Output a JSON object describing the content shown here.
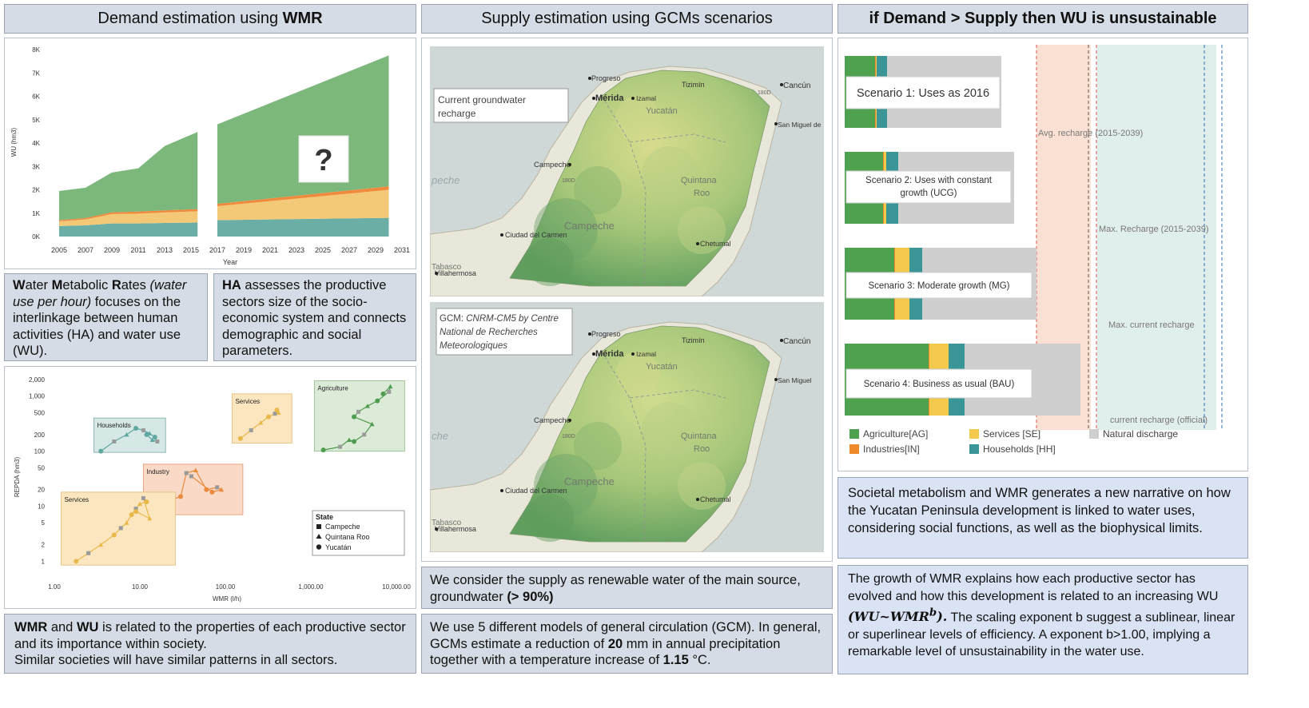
{
  "headers": {
    "demand": {
      "pre": "Demand estimation using ",
      "bold": "WMR"
    },
    "supply": "Supply estimation using GCMs scenarios",
    "unsustainable": "if Demand > Supply then WU is unsustainable"
  },
  "area_chart": {
    "chart_data": {
      "type": "area",
      "x": [
        2005,
        2007,
        2009,
        2011,
        2013,
        2015,
        2017,
        2019,
        2021,
        2023,
        2025,
        2027,
        2029,
        2031
      ],
      "x_tick_labels": [
        "2005",
        "2007",
        "2009",
        "2011",
        "2013",
        "2015",
        "2017",
        "2019",
        "2021",
        "2023",
        "2025",
        "2027",
        "2029",
        "2031"
      ],
      "y_tick_labels": [
        "0K",
        "1K",
        "2K",
        "3K",
        "4K",
        "5K",
        "6K",
        "7K",
        "8K"
      ],
      "xlabel": "Year",
      "ylabel": "WU (hm3)",
      "ylim": [
        0,
        8000
      ],
      "series": [
        {
          "color": "#6aaea6",
          "x": [
            2005,
            2007,
            2009,
            2011,
            2013,
            2015.5
          ],
          "values": [
            450,
            480,
            560,
            560,
            580,
            600
          ]
        },
        {
          "color": "#f3c977",
          "x": [
            2005,
            2007,
            2009,
            2011,
            2013,
            2015.5
          ],
          "values": [
            200,
            250,
            400,
            420,
            450,
            480
          ]
        },
        {
          "color": "#f08a3c",
          "x": [
            2005,
            2007,
            2009,
            2011,
            2013,
            2015.5
          ],
          "values": [
            50,
            60,
            80,
            90,
            90,
            95
          ]
        },
        {
          "color": "#7cb87c",
          "x": [
            2005,
            2007,
            2009,
            2011,
            2013,
            2015.5
          ],
          "values": [
            1250,
            1300,
            1700,
            1850,
            2750,
            3300
          ]
        },
        {
          "color": "#6aaea6",
          "x": [
            2017,
            2030
          ],
          "values": [
            700,
            800
          ]
        },
        {
          "color": "#f3c977",
          "x": [
            2017,
            2030
          ],
          "values": [
            600,
            1200
          ]
        },
        {
          "color": "#f08a3c",
          "x": [
            2017,
            2030
          ],
          "values": [
            100,
            150
          ]
        },
        {
          "color": "#7cb87c",
          "x": [
            2017,
            2030
          ],
          "values": [
            3400,
            5600
          ]
        }
      ],
      "question_mark": "?"
    }
  },
  "wmr_text": {
    "parts": [
      {
        "t": "W",
        "b": true
      },
      {
        "t": "ater "
      },
      {
        "t": "M",
        "b": true
      },
      {
        "t": "etabolic "
      },
      {
        "t": "R",
        "b": true
      },
      {
        "t": "ates "
      },
      {
        "t": "(water use per hour)",
        "i": true
      },
      {
        "t": " focuses on the interlinkage between human activities (HA) and water use (WU)."
      }
    ]
  },
  "ha_text": {
    "bold": "HA",
    "rest": " assesses the productive sectors size of the socio-economic system and connects demographic and social parameters."
  },
  "scatter": {
    "chart_data": {
      "type": "scatter",
      "xlabel": "WMR (l/h)",
      "ylabel": "REPDA (hm3)",
      "x_ticks": [
        {
          "v": 1,
          "label": "1.00"
        },
        {
          "v": 10,
          "label": "10.00"
        },
        {
          "v": 100,
          "label": "100.00"
        },
        {
          "v": 1000,
          "label": "1,000.00"
        },
        {
          "v": 10000,
          "label": "10,000.00"
        }
      ],
      "y_ticks": [
        {
          "v": 1,
          "label": "1"
        },
        {
          "v": 2,
          "label": "2"
        },
        {
          "v": 5,
          "label": "5"
        },
        {
          "v": 10,
          "label": "10"
        },
        {
          "v": 20,
          "label": "20"
        },
        {
          "v": 50,
          "label": "50"
        },
        {
          "v": 100,
          "label": "100"
        },
        {
          "v": 200,
          "label": "200"
        },
        {
          "v": 500,
          "label": "500"
        },
        {
          "v": 1000,
          "label": "1,000"
        },
        {
          "v": 2000,
          "label": "2,000"
        }
      ],
      "xlim": [
        1,
        10000
      ],
      "ylim": [
        0.8,
        2000
      ],
      "groups": [
        {
          "label": "Households",
          "fill": "#d5e8e6",
          "stroke": "#8fb8b4",
          "box": {
            "x": [
              2.9,
              20
            ],
            "y": [
              95,
              400
            ]
          },
          "color": "#5fa8a0",
          "points": [
            [
              3.5,
              100
            ],
            [
              5,
              150
            ],
            [
              7,
              200
            ],
            [
              9,
              260
            ],
            [
              11,
              240
            ],
            [
              13,
              210
            ],
            [
              15,
              180
            ],
            [
              16,
              150
            ],
            [
              14,
              160
            ],
            [
              12,
              200
            ]
          ]
        },
        {
          "label": "Services",
          "fill": "#fbe6bf",
          "stroke": "#e7c488",
          "box": {
            "x": [
              120,
              600
            ],
            "y": [
              140,
              1100
            ]
          },
          "color": "#e8b84a",
          "points": [
            [
              150,
              170
            ],
            [
              200,
              240
            ],
            [
              260,
              330
            ],
            [
              320,
              420
            ],
            [
              380,
              480
            ],
            [
              420,
              500
            ],
            [
              400,
              560
            ]
          ]
        },
        {
          "label": "Agriculture",
          "fill": "#dcebd8",
          "stroke": "#9fc597",
          "box": {
            "x": [
              1100,
              12500
            ],
            "y": [
              100,
              1900
            ]
          },
          "color": "#4f9b4f",
          "points": [
            [
              1400,
              105
            ],
            [
              2200,
              120
            ],
            [
              2800,
              160
            ],
            [
              3200,
              150
            ],
            [
              4200,
              200
            ],
            [
              5200,
              310
            ],
            [
              3200,
              420
            ],
            [
              3600,
              520
            ],
            [
              4600,
              660
            ],
            [
              6000,
              820
            ],
            [
              8200,
              1200
            ],
            [
              8500,
              1500
            ],
            [
              7000,
              1100
            ]
          ]
        },
        {
          "label": "Industry",
          "fill": "#fad9c7",
          "stroke": "#eaa782",
          "box": {
            "x": [
              11,
              160
            ],
            "y": [
              7,
              58
            ]
          },
          "color": "#ea8a3c",
          "points": [
            [
              14,
              9
            ],
            [
              17,
              10
            ],
            [
              20,
              12
            ],
            [
              30,
              15
            ],
            [
              35,
              40
            ],
            [
              45,
              45
            ],
            [
              60,
              20
            ],
            [
              80,
              22
            ],
            [
              90,
              20
            ],
            [
              70,
              18
            ],
            [
              40,
              35
            ]
          ]
        },
        {
          "label": "Services",
          "fill": "#fbe6bf",
          "stroke": "#e7c488",
          "box": {
            "x": [
              1.2,
              26
            ],
            "y": [
              0.85,
              18
            ]
          },
          "color": "#e8b84a",
          "points": [
            [
              1.8,
              1
            ],
            [
              2.5,
              1.4
            ],
            [
              3.5,
              2
            ],
            [
              5,
              3
            ],
            [
              6,
              4
            ],
            [
              7,
              5
            ],
            [
              8,
              7
            ],
            [
              9,
              9
            ],
            [
              10,
              11
            ],
            [
              12,
              12
            ],
            [
              11,
              14
            ],
            [
              13,
              6
            ],
            [
              9,
              8
            ]
          ]
        }
      ],
      "legend": {
        "title": "State",
        "items": [
          {
            "shape": "square",
            "label": "Campeche"
          },
          {
            "shape": "triangle",
            "label": "Quintana Roo"
          },
          {
            "shape": "circle",
            "label": "Yucatán"
          }
        ]
      }
    }
  },
  "wmr_wu_text": {
    "b1": "WMR",
    "m1": " and ",
    "b2": "WU",
    "m2": " is related to the properties of each productive sector and its importance within society.",
    "line2": "Similar societies will have similar patterns in all sectors."
  },
  "maps": {
    "current": {
      "box_label": "Current groundwater recharge",
      "places": {
        "progreso": "Progreso",
        "merida": "Mérida",
        "izamal": "Izamal",
        "tizimin": "Tizimín",
        "cancun": "Cancún",
        "sanmiguel": "San Miguel de",
        "yucatan": "Yucatán",
        "campeche_city": "Campeche",
        "quintana": "Quintana",
        "roo": "Roo",
        "campeche_state": "Campeche",
        "ciudad": "Ciudad del Carmen",
        "chetumal": "Chetumal",
        "tabasco": "Tabasco",
        "villahermosa": "Villahermosa",
        "sea": "peche",
        "road1": "180D",
        "road2": "180D"
      }
    },
    "gcm": {
      "box_prefix": "GCM: ",
      "box_label": "CNRM-CM5 by Centre National de Recherches Meteorologiques",
      "places": {
        "progreso": "Progreso",
        "merida": "Mérida",
        "izamal": "Izamal",
        "tizimin": "Tizimín",
        "cancun": "Cancún",
        "sanmiguel": "San Miguel",
        "yucatan": "Yucatán",
        "campeche_city": "Campeche",
        "quintana": "Quintana",
        "roo": "Roo",
        "campeche_state": "Campeche",
        "ciudad": "Ciudad del Carmen",
        "chetumal": "Chetumal",
        "tabasco": "Tabasco",
        "villahermosa": "Villahermosa",
        "sea": "che",
        "road1": "180D"
      }
    }
  },
  "supply_text": {
    "line": "We consider the supply as renewable water of the main source, groundwater ",
    "bold": "(> 90%)"
  },
  "gcm_text": {
    "pre": "We use 5 different models of general circulation (GCM). In general, GCMs estimate a reduction of ",
    "b1": "20",
    "mid": " mm in annual precipitation together with a temperature increase of ",
    "b2": "1.15",
    "post": " °C."
  },
  "scenarios": {
    "chart_data": {
      "type": "bar",
      "categories": [
        "Scenario 1: Uses as 2016",
        "Scenario 2: Uses with constant growth (UCG)",
        "Scenario 3: Moderate growth (MG)",
        "Scenario 4: Business as usual (BAU)"
      ],
      "series": [
        {
          "name": "Agriculture[AG]",
          "color": "#4ea14e",
          "values": [
            38,
            48,
            62,
            105
          ]
        },
        {
          "name": "Industries[IN]",
          "color": "#ef8a2c",
          "values": [
            1,
            1,
            1,
            1
          ]
        },
        {
          "name": "Services [SE]",
          "color": "#f2c94c",
          "values": [
            1,
            3,
            18,
            24
          ]
        },
        {
          "name": "Households [HH]",
          "color": "#3a9696",
          "values": [
            13,
            15,
            16,
            20
          ]
        },
        {
          "name": "Natural discharge",
          "color": "#cfcfcf",
          "values": [
            143,
            145,
            143,
            145
          ]
        }
      ],
      "references": [
        {
          "label": "Avg. recharge (2015-2039)",
          "value": 240,
          "color": "#d9534f"
        },
        {
          "label": "Max. Recharge (2015-2039)",
          "value": 315,
          "color": "#d9534f"
        },
        {
          "label": "Max. current recharge",
          "value": 305,
          "color": "#555555"
        },
        {
          "label": "current recharge (official)",
          "value": 450,
          "color": "#2f6fb5"
        }
      ]
    },
    "split_labels": [
      "Scenario 2: Uses with constant",
      "growth (UCG)"
    ]
  },
  "societal_text": "Societal metabolism and WMR generates a new narrative on how the Yucatan Peninsula development is linked to water uses, considering social functions, as well as the biophysical limits.",
  "growth_text": {
    "pre": "The growth of WMR explains how each productive sector has evolved and how this development is related to an increasing WU ",
    "formula": "(WU~WMR",
    "sup": "b",
    "formula_end": ").",
    "post": " The scaling exponent b suggest  a sublinear, linear or superlinear  levels of efficiency. A exponent b>1.00, implying a remarkable level of unsustainability in the water use."
  }
}
